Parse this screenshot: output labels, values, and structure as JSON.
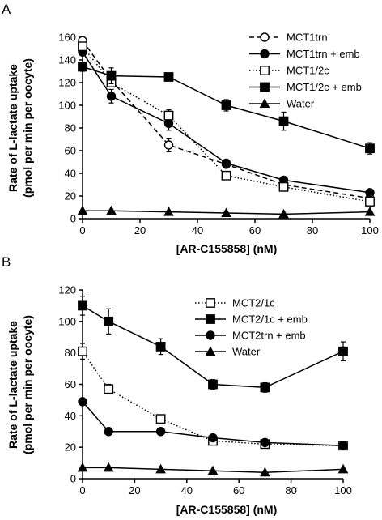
{
  "chart_data": [
    {
      "type": "line",
      "panel_label": "A",
      "xlabel": "[AR-C155858] (nM)",
      "ylabel_line1": "Rate of L-lactate uptake",
      "ylabel_line2": "(pmol per min per oocyte)",
      "xlim": [
        0,
        100
      ],
      "ylim": [
        0,
        160
      ],
      "xticks": [
        0,
        20,
        40,
        60,
        80,
        100
      ],
      "yticks": [
        0,
        20,
        40,
        60,
        80,
        100,
        120,
        140,
        160
      ],
      "grid": false,
      "legend_position": "top-right",
      "series": [
        {
          "name": "MCT1trn",
          "marker": "circle-open",
          "line": "dashed",
          "x": [
            0,
            10,
            30,
            50,
            70,
            100
          ],
          "y": [
            157,
            122,
            65,
            48,
            30,
            18
          ],
          "err": [
            2,
            4,
            6,
            3,
            3,
            2
          ]
        },
        {
          "name": "MCT1trn + emb",
          "marker": "circle-filled",
          "line": "solid",
          "x": [
            0,
            10,
            30,
            50,
            70,
            100
          ],
          "y": [
            147,
            108,
            84,
            49,
            34,
            23
          ],
          "err": [
            3,
            6,
            6,
            3,
            2,
            2
          ]
        },
        {
          "name": "MCT1/2c",
          "marker": "square-open",
          "line": "dotted",
          "x": [
            0,
            10,
            30,
            50,
            70,
            100
          ],
          "y": [
            152,
            120,
            91,
            38,
            28,
            15
          ],
          "err": [
            3,
            3,
            5,
            3,
            3,
            2
          ]
        },
        {
          "name": "MCT1/2c + emb",
          "marker": "square-filled",
          "line": "solid",
          "x": [
            0,
            10,
            30,
            50,
            70,
            100
          ],
          "y": [
            134,
            126,
            125,
            100,
            86,
            62
          ],
          "err": [
            4,
            7,
            3,
            5,
            8,
            5
          ]
        },
        {
          "name": "Water",
          "marker": "triangle-filled",
          "line": "solid",
          "x": [
            0,
            10,
            30,
            50,
            70,
            100
          ],
          "y": [
            7,
            7,
            6,
            5,
            4,
            6
          ],
          "err": [
            0,
            0,
            0,
            0,
            0,
            0
          ]
        }
      ]
    },
    {
      "type": "line",
      "panel_label": "B",
      "xlabel": "[AR-C155858] (nM)",
      "ylabel_line1": "Rate of L-lactate uptake",
      "ylabel_line2": "(pmol per min per oocyte)",
      "xlim": [
        0,
        100
      ],
      "ylim": [
        0,
        120
      ],
      "xticks": [
        0,
        20,
        40,
        60,
        80,
        100
      ],
      "yticks": [
        0,
        20,
        40,
        60,
        80,
        100,
        120
      ],
      "grid": false,
      "legend_position": "top-right",
      "series": [
        {
          "name": "MCT2/1c",
          "marker": "square-open",
          "line": "dotted",
          "x": [
            0,
            10,
            30,
            50,
            70,
            100
          ],
          "y": [
            81,
            57,
            38,
            24,
            22,
            21
          ],
          "err": [
            5,
            3,
            2,
            2,
            1,
            1
          ]
        },
        {
          "name": "MCT2/1c + emb",
          "marker": "square-filled",
          "line": "solid",
          "x": [
            0,
            10,
            30,
            50,
            70,
            100
          ],
          "y": [
            110,
            100,
            84,
            60,
            58,
            81
          ],
          "err": [
            6,
            8,
            5,
            3,
            3,
            6
          ]
        },
        {
          "name": "MCT2trn + emb",
          "marker": "circle-filled",
          "line": "solid",
          "x": [
            0,
            10,
            30,
            50,
            70,
            100
          ],
          "y": [
            49,
            30,
            30,
            26,
            23,
            21
          ],
          "err": [
            2,
            2,
            2,
            2,
            2,
            2
          ]
        },
        {
          "name": "Water",
          "marker": "triangle-filled",
          "line": "solid",
          "x": [
            0,
            10,
            30,
            50,
            70,
            100
          ],
          "y": [
            7,
            7,
            6,
            5,
            4,
            6
          ],
          "err": [
            0,
            0,
            0,
            0,
            0,
            0
          ]
        }
      ]
    }
  ]
}
